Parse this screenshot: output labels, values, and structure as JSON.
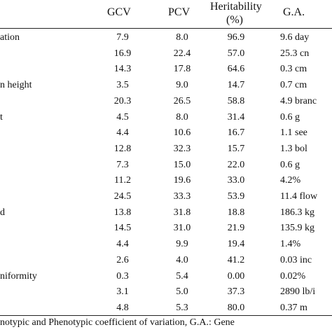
{
  "table": {
    "header": {
      "gcv": "GCV",
      "pcv": "PCV",
      "heritability_line1": "Heritability",
      "heritability_line2": "(%)",
      "ga": "G.A."
    },
    "rows": [
      {
        "trait": "ation",
        "gcv": "7.9",
        "pcv": "8.0",
        "heritability": "96.9",
        "ga": "9.6 day"
      },
      {
        "trait": "",
        "gcv": "16.9",
        "pcv": "22.4",
        "heritability": "57.0",
        "ga": "25.3 cn"
      },
      {
        "trait": "",
        "gcv": "14.3",
        "pcv": "17.8",
        "heritability": "64.6",
        "ga": "0.3 cm"
      },
      {
        "trait": "n height",
        "gcv": "3.5",
        "pcv": "9.0",
        "heritability": "14.7",
        "ga": "0.7 cm"
      },
      {
        "trait": "",
        "gcv": "20.3",
        "pcv": "26.5",
        "heritability": "58.8",
        "ga": "4.9 branc"
      },
      {
        "trait": "t",
        "gcv": "4.5",
        "pcv": "8.0",
        "heritability": "31.4",
        "ga": "0.6 g"
      },
      {
        "trait": "",
        "gcv": "4.4",
        "pcv": "10.6",
        "heritability": "16.7",
        "ga": "1.1 see"
      },
      {
        "trait": "",
        "gcv": "12.8",
        "pcv": "32.3",
        "heritability": "15.7",
        "ga": "1.3 bol"
      },
      {
        "trait": "",
        "gcv": "7.3",
        "pcv": "15.0",
        "heritability": "22.0",
        "ga": "0.6 g"
      },
      {
        "trait": "",
        "gcv": "11.2",
        "pcv": "19.6",
        "heritability": "33.0",
        "ga": "4.2%"
      },
      {
        "trait": "",
        "gcv": "24.5",
        "pcv": "33.3",
        "heritability": "53.9",
        "ga": "11.4 flow"
      },
      {
        "trait": "d",
        "gcv": "13.8",
        "pcv": "31.8",
        "heritability": "18.8",
        "ga": "186.3 kg"
      },
      {
        "trait": "",
        "gcv": "14.5",
        "pcv": "31.0",
        "heritability": "21.9",
        "ga": "135.9 kg"
      },
      {
        "trait": "",
        "gcv": "4.4",
        "pcv": "9.9",
        "heritability": "19.4",
        "ga": "1.4%"
      },
      {
        "trait": "",
        "gcv": "2.6",
        "pcv": "4.0",
        "heritability": "41.2",
        "ga": "0.03 inc"
      },
      {
        "trait": "niformity",
        "gcv": "0.3",
        "pcv": "5.4",
        "heritability": "0.00",
        "ga": "0.02%"
      },
      {
        "trait": "",
        "gcv": "3.1",
        "pcv": "5.0",
        "heritability": "37.3",
        "ga": "2890 lb/i"
      },
      {
        "trait": "",
        "gcv": "4.8",
        "pcv": "5.3",
        "heritability": "80.0",
        "ga": "0.37 m"
      }
    ]
  },
  "footnote": "notypic and Phenotypic coefficient of variation, G.A.: Gene"
}
